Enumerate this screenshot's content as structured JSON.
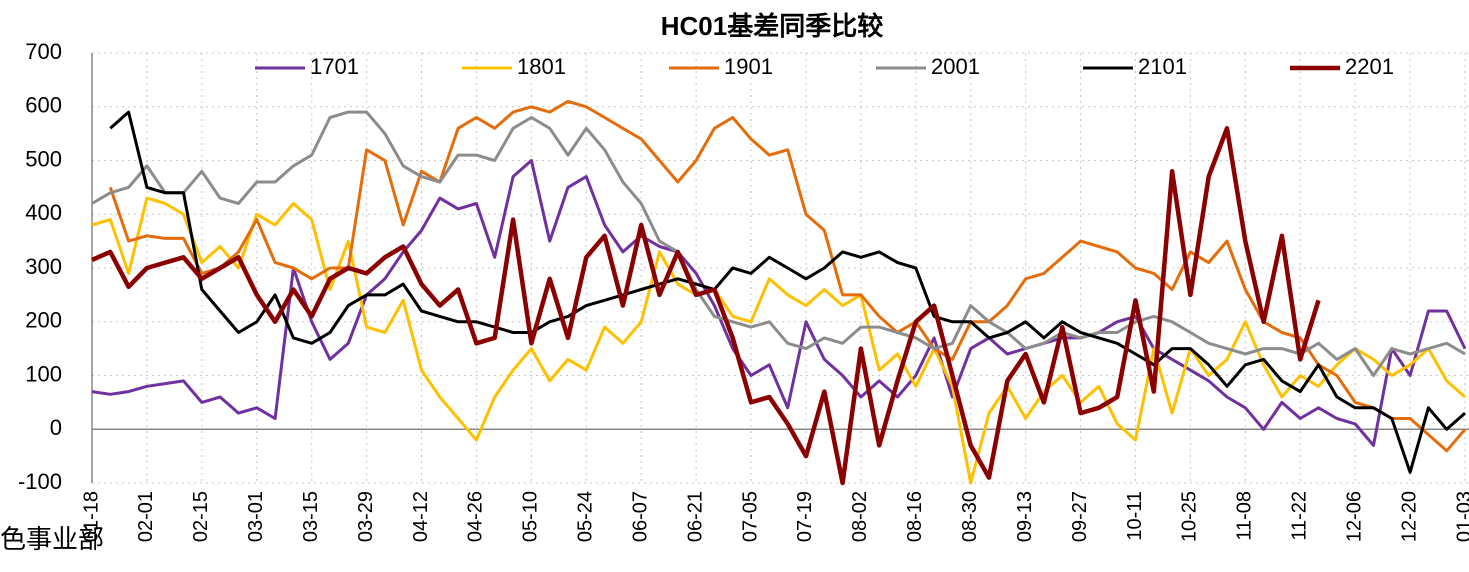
{
  "chart_data": {
    "type": "line",
    "title": "HC01基差同季比较",
    "watermark": "色事业部",
    "categories": [
      "01-18",
      null,
      null,
      "02-01",
      null,
      null,
      "02-15",
      null,
      null,
      "03-01",
      null,
      null,
      "03-15",
      null,
      null,
      "03-29",
      null,
      null,
      "04-12",
      null,
      null,
      "04-26",
      null,
      null,
      "05-10",
      null,
      null,
      "05-24",
      null,
      null,
      "06-07",
      null,
      null,
      "06-21",
      null,
      null,
      "07-05",
      null,
      null,
      "07-19",
      null,
      null,
      "08-02",
      null,
      null,
      "08-16",
      null,
      null,
      "08-30",
      null,
      null,
      "09-13",
      null,
      null,
      "09-27",
      null,
      null,
      "10-11",
      null,
      null,
      "10-25",
      null,
      null,
      "11-08",
      null,
      null,
      "11-22",
      null,
      null,
      "12-06",
      null,
      null,
      "12-20",
      null,
      null,
      "01-03"
    ],
    "ylim": [
      -100,
      700
    ],
    "yticks": [
      -100,
      0,
      100,
      200,
      300,
      400,
      500,
      600,
      700
    ],
    "grid": true,
    "legend": "top",
    "series": [
      {
        "name": "1701",
        "color": "#7030a0",
        "width": 3,
        "values": [
          70,
          65,
          70,
          80,
          85,
          90,
          50,
          60,
          30,
          40,
          20,
          300,
          200,
          130,
          160,
          250,
          280,
          330,
          370,
          430,
          410,
          420,
          320,
          470,
          500,
          350,
          450,
          470,
          380,
          330,
          360,
          340,
          330,
          290,
          230,
          150,
          100,
          120,
          40,
          200,
          130,
          100,
          60,
          90,
          60,
          100,
          170,
          60,
          150,
          170,
          140,
          150,
          160,
          170,
          170,
          180,
          200,
          210,
          150,
          130,
          110,
          90,
          60,
          40,
          0,
          50,
          20,
          40,
          20,
          10,
          -30,
          150,
          100,
          220,
          220,
          150
        ]
      },
      {
        "name": "1801",
        "color": "#ffc000",
        "width": 3,
        "values": [
          380,
          390,
          290,
          430,
          420,
          400,
          310,
          340,
          300,
          400,
          380,
          420,
          390,
          260,
          350,
          190,
          180,
          240,
          110,
          60,
          20,
          -20,
          60,
          110,
          150,
          90,
          130,
          110,
          190,
          160,
          200,
          330,
          270,
          250,
          260,
          210,
          200,
          280,
          250,
          230,
          260,
          230,
          250,
          110,
          140,
          80,
          150,
          80,
          -100,
          30,
          80,
          20,
          70,
          100,
          50,
          80,
          10,
          -20,
          150,
          30,
          150,
          100,
          130,
          200,
          120,
          60,
          100,
          80,
          120,
          150,
          130,
          100,
          120,
          150,
          90,
          60
        ]
      },
      {
        "name": "1901",
        "color": "#e46c0a",
        "width": 3,
        "values": [
          null,
          450,
          350,
          360,
          355,
          355,
          290,
          300,
          330,
          390,
          310,
          300,
          280,
          300,
          300,
          520,
          500,
          380,
          480,
          460,
          560,
          580,
          560,
          590,
          600,
          590,
          610,
          600,
          580,
          560,
          540,
          500,
          460,
          500,
          560,
          580,
          540,
          510,
          520,
          400,
          370,
          250,
          250,
          210,
          180,
          200,
          150,
          130,
          200,
          200,
          230,
          280,
          290,
          320,
          350,
          340,
          330,
          300,
          290,
          260,
          330,
          310,
          350,
          260,
          200,
          180,
          170,
          120,
          100,
          50,
          40,
          20,
          20,
          -10,
          -40,
          0
        ]
      },
      {
        "name": "2001",
        "color": "#8c8c8c",
        "width": 3,
        "values": [
          420,
          440,
          450,
          490,
          440,
          440,
          480,
          430,
          420,
          460,
          460,
          490,
          510,
          580,
          590,
          590,
          550,
          490,
          470,
          460,
          510,
          510,
          500,
          560,
          580,
          560,
          510,
          560,
          520,
          460,
          420,
          350,
          330,
          260,
          210,
          200,
          190,
          200,
          160,
          150,
          170,
          160,
          190,
          190,
          180,
          170,
          150,
          160,
          230,
          200,
          180,
          150,
          160,
          180,
          170,
          180,
          180,
          200,
          210,
          200,
          180,
          160,
          150,
          140,
          150,
          150,
          140,
          160,
          130,
          150,
          100,
          150,
          140,
          150,
          160,
          140
        ]
      },
      {
        "name": "2101",
        "color": "#000000",
        "width": 3,
        "values": [
          null,
          560,
          590,
          450,
          440,
          440,
          260,
          220,
          180,
          200,
          250,
          170,
          160,
          180,
          230,
          250,
          250,
          270,
          220,
          210,
          200,
          200,
          190,
          180,
          180,
          200,
          210,
          230,
          240,
          250,
          260,
          270,
          280,
          270,
          260,
          300,
          290,
          320,
          300,
          280,
          300,
          330,
          320,
          330,
          310,
          300,
          210,
          200,
          200,
          170,
          180,
          200,
          170,
          200,
          180,
          170,
          160,
          140,
          120,
          150,
          150,
          120,
          80,
          120,
          130,
          90,
          70,
          120,
          60,
          40,
          40,
          20,
          -80,
          40,
          0,
          30
        ]
      },
      {
        "name": "2201",
        "color": "#8b0000",
        "width": 4.5,
        "values": [
          315,
          330,
          265,
          300,
          310,
          320,
          280,
          300,
          320,
          250,
          200,
          260,
          210,
          280,
          300,
          290,
          320,
          340,
          270,
          230,
          260,
          160,
          170,
          390,
          160,
          280,
          170,
          320,
          360,
          230,
          380,
          250,
          330,
          250,
          260,
          170,
          50,
          60,
          10,
          -50,
          70,
          -100,
          150,
          -30,
          90,
          200,
          230,
          100,
          -30,
          -90,
          90,
          140,
          50,
          190,
          30,
          40,
          60,
          240,
          70,
          480,
          250,
          470,
          560,
          350,
          200,
          360,
          130,
          240,
          null,
          null,
          null,
          null,
          null,
          null,
          null,
          null
        ]
      }
    ]
  }
}
